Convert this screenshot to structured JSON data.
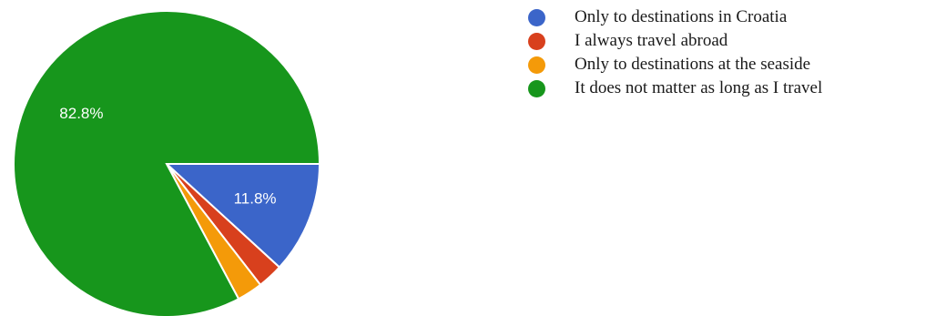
{
  "chart_data": {
    "type": "pie",
    "categories": [
      "Only to destinations in Croatia",
      "I always travel abroad",
      "Only to destinations at the seaside",
      "It does not matter as long as I travel"
    ],
    "values": [
      11.8,
      2.7,
      2.7,
      82.8
    ],
    "labels": [
      "11.8%",
      "",
      "",
      "82.8%"
    ],
    "colors": [
      "#3b65c9",
      "#d8401d",
      "#f49a09",
      "#17961c"
    ],
    "title": "",
    "legend_position": "top-right"
  }
}
